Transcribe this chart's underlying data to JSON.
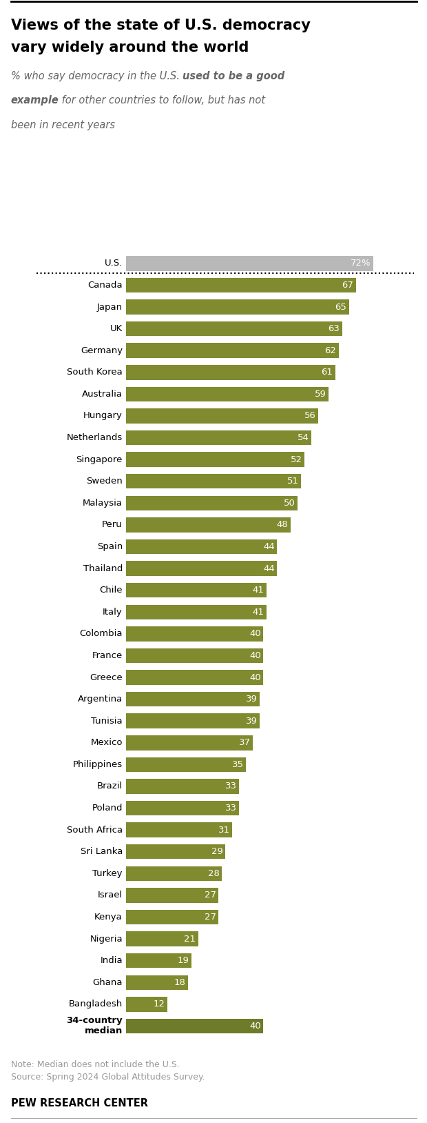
{
  "title_line1": "Views of the state of U.S. democracy",
  "title_line2": "vary widely around the world",
  "categories": [
    "U.S.",
    "Canada",
    "Japan",
    "UK",
    "Germany",
    "South Korea",
    "Australia",
    "Hungary",
    "Netherlands",
    "Singapore",
    "Sweden",
    "Malaysia",
    "Peru",
    "Spain",
    "Thailand",
    "Chile",
    "Italy",
    "Colombia",
    "France",
    "Greece",
    "Argentina",
    "Tunisia",
    "Mexico",
    "Philippines",
    "Brazil",
    "Poland",
    "South Africa",
    "Sri Lanka",
    "Turkey",
    "Israel",
    "Kenya",
    "Nigeria",
    "India",
    "Ghana",
    "Bangladesh",
    "34-country\nmedian"
  ],
  "values": [
    72,
    67,
    65,
    63,
    62,
    61,
    59,
    56,
    54,
    52,
    51,
    50,
    48,
    44,
    44,
    41,
    41,
    40,
    40,
    40,
    39,
    39,
    37,
    35,
    33,
    33,
    31,
    29,
    28,
    27,
    27,
    21,
    19,
    18,
    12,
    40
  ],
  "bar_color_us": "#b8b8b8",
  "bar_color_olive": "#808a2f",
  "bar_color_median": "#6e7b28",
  "note": "Note: Median does not include the U.S.",
  "source": "Source: Spring 2024 Global Attitudes Survey.",
  "footer": "PEW RESEARCH CENTER",
  "bg_color": "#ffffff",
  "title_color": "#000000",
  "subtitle_color": "#666666",
  "label_color": "#000000",
  "white": "#ffffff",
  "note_color": "#999999",
  "bar_height": 0.68,
  "xlim_max": 84
}
